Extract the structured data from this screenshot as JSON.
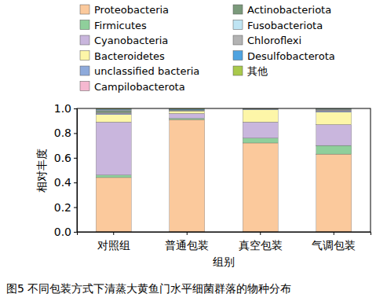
{
  "chart_data": {
    "type": "bar",
    "stacked": true,
    "title": "图5 不同包装方式下清蒸大黄鱼门水平细菌群落的物种分布",
    "x_label": "组别",
    "y_label": "相对丰度",
    "categories": [
      "对照组",
      "普通包装",
      "真空包装",
      "气调包装"
    ],
    "ylim": [
      0,
      1
    ],
    "yticks": [
      {
        "value": 0,
        "label": "0.0"
      },
      {
        "value": 0.2,
        "label": "0.2"
      },
      {
        "value": 0.4,
        "label": "0.4"
      },
      {
        "value": 0.6,
        "label": "0.6"
      },
      {
        "value": 0.8,
        "label": "0.8"
      },
      {
        "value": 1,
        "label": "1.0"
      }
    ],
    "legend": "top",
    "series": [
      {
        "name": "Proteobacteria",
        "color": "#fbc99c",
        "values": [
          0.44,
          0.91,
          0.72,
          0.63
        ]
      },
      {
        "name": "Firmicutes",
        "color": "#8fcf9b",
        "values": [
          0.02,
          0.01,
          0.04,
          0.07
        ]
      },
      {
        "name": "Cyanobacteria",
        "color": "#c9b6dd",
        "values": [
          0.43,
          0.04,
          0.13,
          0.17
        ]
      },
      {
        "name": "Bacteroidetes",
        "color": "#fdf6a8",
        "values": [
          0.06,
          0.02,
          0.1,
          0.1
        ]
      },
      {
        "name": "unclassified bacteria",
        "color": "#8eaadb",
        "values": [
          0.01,
          0.005,
          0.005,
          0.01
        ]
      },
      {
        "name": "Campilobacterota",
        "color": "#f5b8d0",
        "values": [
          0.005,
          0,
          0,
          0.005
        ]
      },
      {
        "name": "Actinobacteriota",
        "color": "#7b9a7b",
        "values": [
          0.015,
          0.003,
          0.002,
          0.005
        ]
      },
      {
        "name": "Fusobacteriota",
        "color": "#bfe4f3",
        "values": [
          0.005,
          0.002,
          0.001,
          0.003
        ]
      },
      {
        "name": "Chloroflexi",
        "color": "#b3b3b3",
        "values": [
          0.005,
          0,
          0.001,
          0.002
        ]
      },
      {
        "name": "Desulfobacterota",
        "color": "#4fa3e0",
        "values": [
          0.005,
          0.005,
          0,
          0.003
        ]
      },
      {
        "name": "其他",
        "color": "#a9c94b",
        "values": [
          0.005,
          0.005,
          0.001,
          0.002
        ]
      }
    ]
  }
}
